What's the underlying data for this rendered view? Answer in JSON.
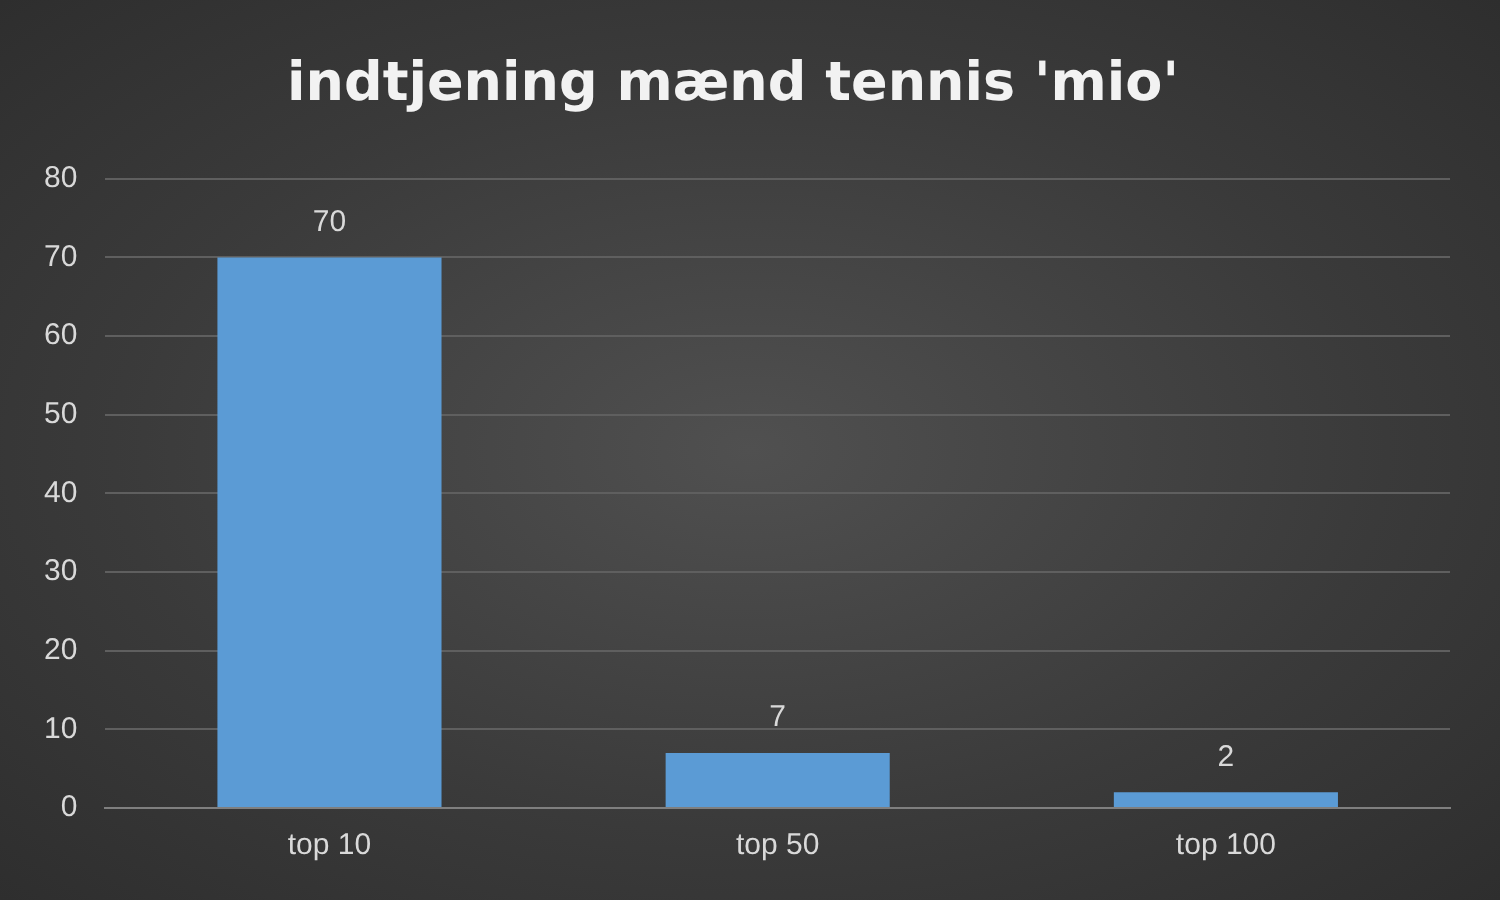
{
  "chart_data": {
    "type": "bar",
    "title": "indtjening mænd tennis 'mio'",
    "categories": [
      "top 10",
      "top 50",
      "top 100"
    ],
    "values": [
      70,
      7,
      2
    ],
    "color": "#5b9bd5",
    "ylim": [
      0,
      80
    ],
    "yticks": [
      0,
      10,
      20,
      30,
      40,
      50,
      60,
      70,
      80
    ],
    "grid": "y",
    "data_labels": true,
    "legend": false
  }
}
